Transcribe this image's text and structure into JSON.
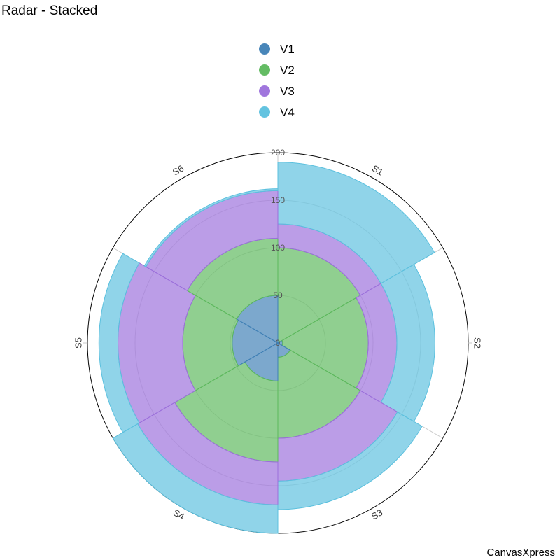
{
  "title": "Radar - Stacked",
  "credit": "CanvasXpress",
  "chart_data": {
    "type": "radar",
    "stacked": true,
    "title": "Radar - Stacked",
    "categories": [
      "S1",
      "S2",
      "S3",
      "S4",
      "S5",
      "S6"
    ],
    "series": [
      {
        "name": "V1",
        "color": "#3E7FB5",
        "values": [
          0,
          5,
          15,
          40,
          48,
          50
        ]
      },
      {
        "name": "V2",
        "color": "#5CB85C",
        "values": [
          100,
          90,
          85,
          85,
          52,
          60
        ]
      },
      {
        "name": "V3",
        "color": "#9B6FDB",
        "values": [
          25,
          30,
          45,
          45,
          68,
          50
        ]
      },
      {
        "name": "V4",
        "color": "#5BC0DE",
        "values": [
          65,
          40,
          30,
          30,
          20,
          2
        ]
      }
    ],
    "radial_ticks": [
      "0",
      "50",
      "100",
      "150",
      "200"
    ],
    "rlim": [
      0,
      200
    ],
    "legend_position": "top",
    "grid": true
  }
}
